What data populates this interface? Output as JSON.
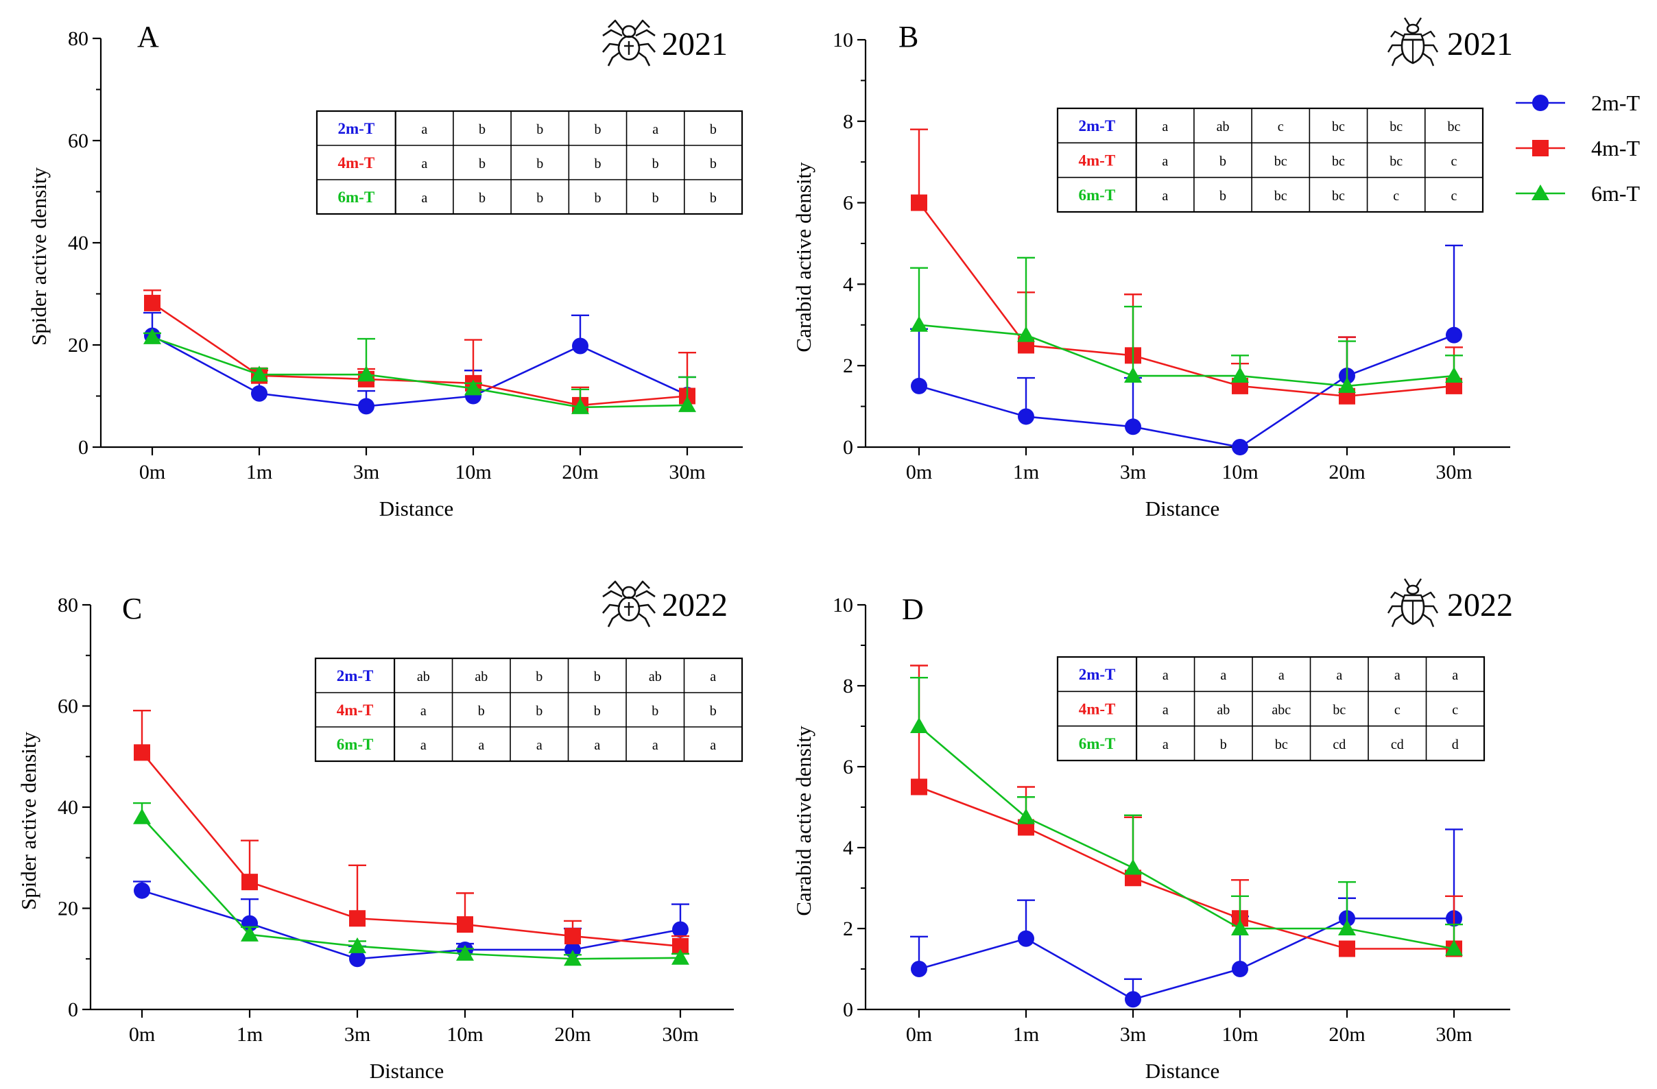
{
  "figure": {
    "xlabel": "Distance",
    "legend": [
      {
        "name": "2m-T",
        "color": "#1515e0",
        "marker": "circle"
      },
      {
        "name": "4m-T",
        "color": "#ee1c1c",
        "marker": "square"
      },
      {
        "name": "6m-T",
        "color": "#0fbf1f",
        "marker": "triangle"
      }
    ]
  },
  "chart_data": [
    {
      "type": "line",
      "panel_label": "A",
      "year": "2021",
      "icon": "spider-icon",
      "title": "",
      "xlabel": "Distance",
      "ylabel": "Spider active density",
      "ylim": [
        0,
        80
      ],
      "yticks": [
        0,
        20,
        40,
        60,
        80
      ],
      "minor_yticks": [
        10,
        30,
        50,
        70
      ],
      "categories": [
        "0m",
        "1m",
        "3m",
        "10m",
        "20m",
        "30m"
      ],
      "series": [
        {
          "name": "2m-T",
          "color": "#1515e0",
          "marker": "circle",
          "values": [
            21.8,
            10.5,
            8.0,
            10.0,
            19.8,
            10.2
          ],
          "errors": [
            4.5,
            4.5,
            3.0,
            5.0,
            6.0,
            3.5
          ]
        },
        {
          "name": "4m-T",
          "color": "#ee1c1c",
          "marker": "square",
          "values": [
            28.2,
            14.0,
            13.3,
            12.5,
            8.2,
            10.0
          ],
          "errors": [
            2.5,
            1.0,
            2.0,
            8.5,
            3.5,
            8.5
          ]
        },
        {
          "name": "6m-T",
          "color": "#0fbf1f",
          "marker": "triangle",
          "values": [
            21.5,
            14.2,
            14.2,
            11.5,
            7.8,
            8.2
          ],
          "errors": [
            0.8,
            1.2,
            7.0,
            1.0,
            3.5,
            5.5
          ]
        }
      ],
      "letters_table": {
        "rows": [
          {
            "name": "2m-T",
            "color": "#1515e0",
            "cells": [
              "a",
              "b",
              "b",
              "b",
              "a",
              "b"
            ]
          },
          {
            "name": "4m-T",
            "color": "#ee1c1c",
            "cells": [
              "a",
              "b",
              "b",
              "b",
              "b",
              "b"
            ]
          },
          {
            "name": "6m-T",
            "color": "#0fbf1f",
            "cells": [
              "a",
              "b",
              "b",
              "b",
              "b",
              "b"
            ]
          }
        ]
      }
    },
    {
      "type": "line",
      "panel_label": "B",
      "year": "2021",
      "icon": "beetle-icon",
      "title": "",
      "xlabel": "Distance",
      "ylabel": "Carabid active density",
      "ylim": [
        0,
        10
      ],
      "yticks": [
        0,
        2,
        4,
        6,
        8,
        10
      ],
      "minor_yticks": [
        1,
        3,
        5,
        7,
        9
      ],
      "categories": [
        "0m",
        "1m",
        "3m",
        "10m",
        "20m",
        "30m"
      ],
      "series": [
        {
          "name": "2m-T",
          "color": "#1515e0",
          "marker": "circle",
          "values": [
            1.5,
            0.75,
            0.5,
            0.0,
            1.75,
            2.75
          ],
          "errors": [
            1.4,
            0.95,
            1.2,
            0.0,
            0.95,
            2.2
          ]
        },
        {
          "name": "4m-T",
          "color": "#ee1c1c",
          "marker": "square",
          "values": [
            6.0,
            2.5,
            2.25,
            1.5,
            1.25,
            1.5
          ],
          "errors": [
            1.8,
            1.3,
            1.5,
            0.55,
            1.45,
            0.95
          ]
        },
        {
          "name": "6m-T",
          "color": "#0fbf1f",
          "marker": "triangle",
          "values": [
            3.0,
            2.75,
            1.75,
            1.75,
            1.5,
            1.75
          ],
          "errors": [
            1.4,
            1.9,
            1.7,
            0.5,
            1.1,
            0.5
          ]
        }
      ],
      "letters_table": {
        "rows": [
          {
            "name": "2m-T",
            "color": "#1515e0",
            "cells": [
              "a",
              "ab",
              "c",
              "bc",
              "bc",
              "bc"
            ]
          },
          {
            "name": "4m-T",
            "color": "#ee1c1c",
            "cells": [
              "a",
              "b",
              "bc",
              "bc",
              "bc",
              "c"
            ]
          },
          {
            "name": "6m-T",
            "color": "#0fbf1f",
            "cells": [
              "a",
              "b",
              "bc",
              "bc",
              "c",
              "c"
            ]
          }
        ]
      }
    },
    {
      "type": "line",
      "panel_label": "C",
      "year": "2022",
      "icon": "spider-icon",
      "title": "",
      "xlabel": "Distance",
      "ylabel": "Spider active density",
      "ylim": [
        0,
        80
      ],
      "yticks": [
        0,
        20,
        40,
        60,
        80
      ],
      "minor_yticks": [
        10,
        30,
        50,
        70
      ],
      "categories": [
        "0m",
        "1m",
        "3m",
        "10m",
        "20m",
        "30m"
      ],
      "series": [
        {
          "name": "2m-T",
          "color": "#1515e0",
          "marker": "circle",
          "values": [
            23.5,
            17.0,
            10.0,
            11.8,
            11.8,
            15.8
          ],
          "errors": [
            1.8,
            4.8,
            2.5,
            1.2,
            4.2,
            5.0
          ]
        },
        {
          "name": "4m-T",
          "color": "#ee1c1c",
          "marker": "square",
          "values": [
            50.8,
            25.2,
            18.0,
            16.8,
            14.5,
            12.5
          ],
          "errors": [
            8.3,
            8.2,
            10.5,
            6.2,
            3.0,
            2.0
          ]
        },
        {
          "name": "6m-T",
          "color": "#0fbf1f",
          "marker": "triangle",
          "values": [
            38.0,
            14.8,
            12.5,
            11.0,
            10.0,
            10.2
          ],
          "errors": [
            2.8,
            1.5,
            1.0,
            1.0,
            0.8,
            0.8
          ]
        }
      ],
      "letters_table": {
        "rows": [
          {
            "name": "2m-T",
            "color": "#1515e0",
            "cells": [
              "ab",
              "ab",
              "b",
              "b",
              "ab",
              "a"
            ]
          },
          {
            "name": "4m-T",
            "color": "#ee1c1c",
            "cells": [
              "a",
              "b",
              "b",
              "b",
              "b",
              "b"
            ]
          },
          {
            "name": "6m-T",
            "color": "#0fbf1f",
            "cells": [
              "a",
              "a",
              "a",
              "a",
              "a",
              "a"
            ]
          }
        ]
      }
    },
    {
      "type": "line",
      "panel_label": "D",
      "year": "2022",
      "icon": "beetle-icon",
      "title": "",
      "xlabel": "Distance",
      "ylabel": "Carabid active density",
      "ylim": [
        0,
        10
      ],
      "yticks": [
        0,
        2,
        4,
        6,
        8,
        10
      ],
      "minor_yticks": [
        1,
        3,
        5,
        7,
        9
      ],
      "categories": [
        "0m",
        "1m",
        "3m",
        "10m",
        "20m",
        "30m"
      ],
      "series": [
        {
          "name": "2m-T",
          "color": "#1515e0",
          "marker": "circle",
          "values": [
            1.0,
            1.75,
            0.25,
            1.0,
            2.25,
            2.25
          ],
          "errors": [
            0.8,
            0.95,
            0.5,
            1.3,
            0.5,
            2.2
          ]
        },
        {
          "name": "4m-T",
          "color": "#ee1c1c",
          "marker": "square",
          "values": [
            5.5,
            4.5,
            3.25,
            2.25,
            1.5,
            1.5
          ],
          "errors": [
            3.0,
            1.0,
            1.5,
            0.95,
            0.0,
            1.3
          ]
        },
        {
          "name": "6m-T",
          "color": "#0fbf1f",
          "marker": "triangle",
          "values": [
            7.0,
            4.75,
            3.5,
            2.0,
            2.0,
            1.5
          ],
          "errors": [
            1.2,
            0.5,
            1.3,
            0.8,
            1.15,
            0.6
          ]
        }
      ],
      "letters_table": {
        "rows": [
          {
            "name": "2m-T",
            "color": "#1515e0",
            "cells": [
              "a",
              "a",
              "a",
              "a",
              "a",
              "a"
            ]
          },
          {
            "name": "4m-T",
            "color": "#ee1c1c",
            "cells": [
              "a",
              "ab",
              "abc",
              "bc",
              "c",
              "c"
            ]
          },
          {
            "name": "6m-T",
            "color": "#0fbf1f",
            "cells": [
              "a",
              "b",
              "bc",
              "cd",
              "cd",
              "d"
            ]
          }
        ]
      }
    }
  ]
}
